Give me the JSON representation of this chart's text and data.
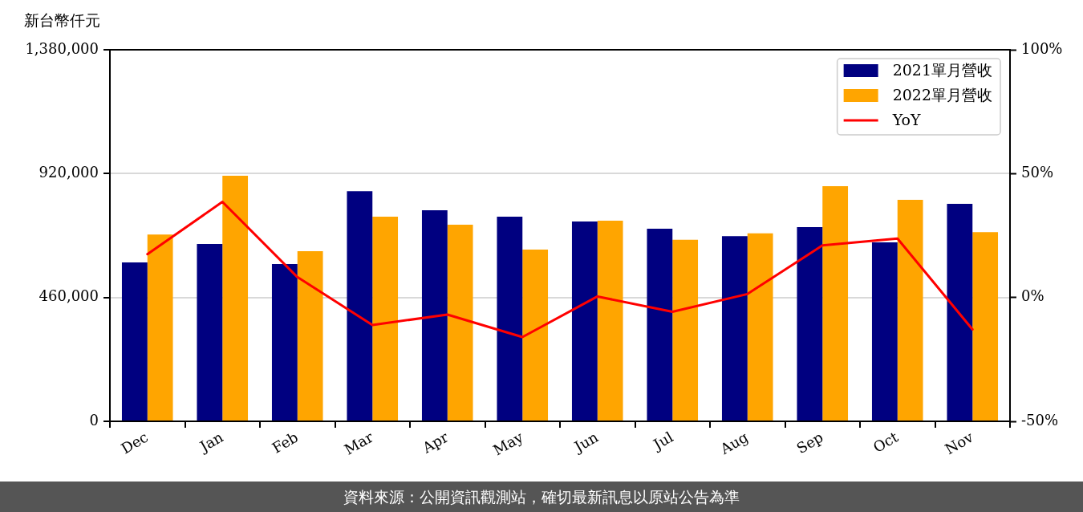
{
  "chart_data": {
    "type": "bar",
    "ylabel": "新台幣仟元",
    "categories": [
      "Dec",
      "Jan",
      "Feb",
      "Mar",
      "Apr",
      "May",
      "Jun",
      "Jul",
      "Aug",
      "Sep",
      "Oct",
      "Nov"
    ],
    "series": [
      {
        "name": "2021單月營收",
        "color": "#000080",
        "values": [
          590000,
          659000,
          584000,
          855000,
          784000,
          760000,
          742000,
          715000,
          688000,
          721000,
          665000,
          808000
        ]
      },
      {
        "name": "2022單月營收",
        "color": "#ffa500",
        "values": [
          694000,
          912000,
          632000,
          760000,
          730000,
          638000,
          745000,
          674000,
          698000,
          873000,
          823000,
          703000
        ]
      },
      {
        "name": "YoY",
        "type": "line",
        "axis": "y2",
        "color": "#ff0000",
        "values": [
          17.5,
          38.6,
          8.2,
          -11.1,
          -6.9,
          -16.0,
          0.4,
          -5.8,
          1.4,
          21.0,
          23.8,
          -12.9
        ]
      }
    ],
    "ylim": [
      0,
      1380000
    ],
    "yticks": [
      0,
      {
        "value": 460000,
        "label": "460,000"
      },
      {
        "value": 920000,
        "label": "920,000"
      },
      {
        "value": 1380000,
        "label": "1,380,000"
      }
    ],
    "y2lim": [
      -50,
      100
    ],
    "y2ticks": [
      {
        "value": -50,
        "label": "-50%"
      },
      {
        "value": 0,
        "label": "0%"
      },
      {
        "value": 50,
        "label": "50%"
      },
      {
        "value": 100,
        "label": "100%"
      }
    ],
    "grid": "y",
    "legend": "top right",
    "marker": "none",
    "line_style": "solid",
    "annotations": [
      "資料來源：公開資訊觀測站，確切最新訊息以原站公告為準"
    ]
  }
}
